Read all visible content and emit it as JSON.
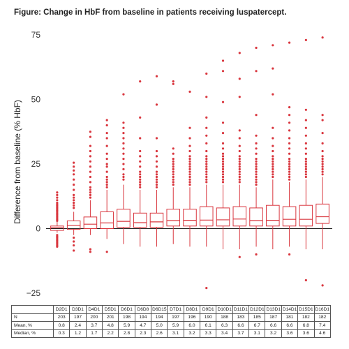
{
  "figure": {
    "title": "Figure: Change in HbF from baseline in patients receiving luspatercept."
  },
  "colors": {
    "box": "#d9363e",
    "zero_line": "#222222",
    "axis_text": "#333333"
  },
  "chart_data": {
    "type": "box",
    "title": "",
    "xlabel": "",
    "ylabel": "Difference from baseline (% HbF)",
    "ylim": [
      -25,
      75
    ],
    "yticks": [
      -25,
      0,
      25,
      50,
      75
    ],
    "grid": false,
    "reference_line": 0,
    "categories": [
      "D2D1",
      "D3D1",
      "D4D1",
      "D5D1",
      "D6D1",
      "D6D8",
      "D6D15",
      "D7D1",
      "D8D1",
      "D9D1",
      "D10D1",
      "D11D1",
      "D12D1",
      "D13D1",
      "D14D1",
      "D15D1",
      "D16D1"
    ],
    "boxes": [
      {
        "q1": -0.7,
        "median": 0.3,
        "q3": 1.0,
        "whisker_low": -1.6,
        "whisker_high": 2.6,
        "outliers": [
          14,
          13,
          12,
          11,
          10,
          9.5,
          9,
          8.5,
          8,
          7.5,
          7,
          6.5,
          6,
          5.5,
          5,
          4.5,
          4,
          3.5,
          3,
          -2.5,
          -3,
          -3.5,
          -4,
          -4.5,
          -5,
          -5.5,
          -6,
          -6.5,
          -7
        ]
      },
      {
        "q1": -0.3,
        "median": 1.2,
        "q3": 3.0,
        "whisker_low": -2.5,
        "whisker_high": 6.5,
        "outliers": [
          25.5,
          24,
          22.5,
          21,
          19,
          17,
          15,
          13,
          12,
          11,
          10,
          9,
          8,
          -3.5,
          -5,
          -6.5,
          -8.5
        ]
      },
      {
        "q1": 0.0,
        "median": 1.7,
        "q3": 4.5,
        "whisker_low": -2.5,
        "whisker_high": 11,
        "outliers": [
          37.5,
          35.5,
          32,
          30,
          28,
          26,
          24,
          22,
          20,
          18,
          16,
          15,
          14,
          13,
          12,
          -8,
          -9
        ]
      },
      {
        "q1": 0.0,
        "median": 2.2,
        "q3": 6.5,
        "whisker_low": -4,
        "whisker_high": 15,
        "outliers": [
          42,
          40,
          37,
          35,
          32,
          29,
          27,
          25,
          24,
          22,
          20,
          19,
          18,
          17,
          16,
          -9
        ]
      },
      {
        "q1": 0.5,
        "median": 2.8,
        "q3": 7.5,
        "whisker_low": -6,
        "whisker_high": 17,
        "outliers": [
          52,
          41,
          39,
          37,
          35,
          33,
          31,
          29,
          27,
          25,
          23,
          21,
          20,
          19
        ]
      },
      {
        "q1": 0.5,
        "median": 2.3,
        "q3": 6.0,
        "whisker_low": -7,
        "whisker_high": 15,
        "outliers": [
          57,
          43,
          35,
          30,
          28,
          26,
          24,
          22,
          21,
          20,
          19,
          18,
          17,
          16
        ]
      },
      {
        "q1": 0.5,
        "median": 2.6,
        "q3": 6.0,
        "whisker_low": -7,
        "whisker_high": 15,
        "outliers": [
          59,
          48,
          35,
          30,
          28,
          26,
          24,
          22,
          21,
          20,
          19,
          18,
          17,
          16
        ]
      },
      {
        "q1": 1.0,
        "median": 3.1,
        "q3": 7.5,
        "whisker_low": -6,
        "whisker_high": 16,
        "outliers": [
          57,
          56,
          31,
          29,
          27,
          26,
          25,
          24,
          23,
          22,
          21,
          20,
          19,
          18,
          17
        ]
      },
      {
        "q1": 1.0,
        "median": 3.2,
        "q3": 7.5,
        "whisker_low": -7,
        "whisker_high": 16,
        "outliers": [
          53,
          39,
          35,
          32,
          30,
          28,
          27,
          26,
          25,
          24,
          23,
          22,
          21,
          20,
          19,
          18,
          17
        ]
      },
      {
        "q1": 1.0,
        "median": 3.3,
        "q3": 8.5,
        "whisker_low": -7,
        "whisker_high": 17,
        "outliers": [
          60,
          51,
          43,
          39,
          36,
          33,
          30,
          28,
          27,
          26,
          25,
          24,
          23,
          22,
          21,
          20,
          19,
          18,
          -23
        ]
      },
      {
        "q1": 1.0,
        "median": 3.4,
        "q3": 8.0,
        "whisker_low": -8,
        "whisker_high": 17,
        "outliers": [
          65,
          61,
          49,
          41,
          37,
          33,
          31,
          29,
          28,
          27,
          26,
          25,
          24,
          23,
          22,
          21,
          20,
          19,
          18
        ]
      },
      {
        "q1": 1.0,
        "median": 3.7,
        "q3": 8.5,
        "whisker_low": -8,
        "whisker_high": 17,
        "outliers": [
          68,
          58,
          51,
          38,
          35,
          32,
          30,
          28,
          27,
          26,
          25,
          24,
          23,
          22,
          21,
          20,
          19,
          18,
          -11
        ]
      },
      {
        "q1": 1.0,
        "median": 3.1,
        "q3": 8.0,
        "whisker_low": -7,
        "whisker_high": 16,
        "outliers": [
          70,
          61,
          44,
          36,
          33,
          31,
          29,
          27,
          26,
          25,
          24,
          23,
          22,
          21,
          20,
          19,
          18,
          17,
          -10
        ]
      },
      {
        "q1": 1.0,
        "median": 3.2,
        "q3": 9.0,
        "whisker_low": -8,
        "whisker_high": 19,
        "outliers": [
          71,
          62,
          52,
          39,
          35,
          32,
          30,
          28,
          27,
          26,
          25,
          24,
          23,
          22,
          21,
          20
        ]
      },
      {
        "q1": 1.0,
        "median": 3.6,
        "q3": 8.5,
        "whisker_low": -7,
        "whisker_high": 18,
        "outliers": [
          72,
          47,
          44,
          41,
          38,
          35,
          33,
          31,
          29,
          27,
          26,
          25,
          24,
          23,
          22,
          21,
          20,
          19,
          -10
        ]
      },
      {
        "q1": 1.0,
        "median": 3.6,
        "q3": 9.0,
        "whisker_low": -8,
        "whisker_high": 19,
        "outliers": [
          73,
          46,
          42,
          39,
          36,
          33,
          31,
          29,
          27,
          26,
          25,
          24,
          23,
          22,
          21,
          20,
          -20
        ]
      },
      {
        "q1": 2.0,
        "median": 4.6,
        "q3": 9.5,
        "whisker_low": -8,
        "whisker_high": 20,
        "outliers": [
          74,
          44,
          42,
          37,
          33,
          30,
          28,
          27,
          26,
          25,
          24,
          23,
          22,
          21,
          -22
        ]
      }
    ]
  },
  "table": {
    "rows": [
      {
        "label": "N",
        "values": [
          "203",
          "197",
          "200",
          "201",
          "198",
          "194",
          "194",
          "197",
          "196",
          "190",
          "188",
          "183",
          "185",
          "187",
          "181",
          "182",
          "182"
        ]
      },
      {
        "label": "Mean, %",
        "values": [
          "0.8",
          "2.4",
          "3.7",
          "4.8",
          "5.9",
          "4.7",
          "5.0",
          "5.9",
          "6.0",
          "6.1",
          "6.3",
          "6.6",
          "6.7",
          "6.6",
          "6.6",
          "6.8",
          "7.4"
        ]
      },
      {
        "label": "Median, %",
        "values": [
          "0.3",
          "1.2",
          "1.7",
          "2.2",
          "2.8",
          "2.3",
          "2.6",
          "3.1",
          "3.2",
          "3.3",
          "3.4",
          "3.7",
          "3.1",
          "3.2",
          "3.6",
          "3.6",
          "4.6"
        ]
      }
    ]
  }
}
